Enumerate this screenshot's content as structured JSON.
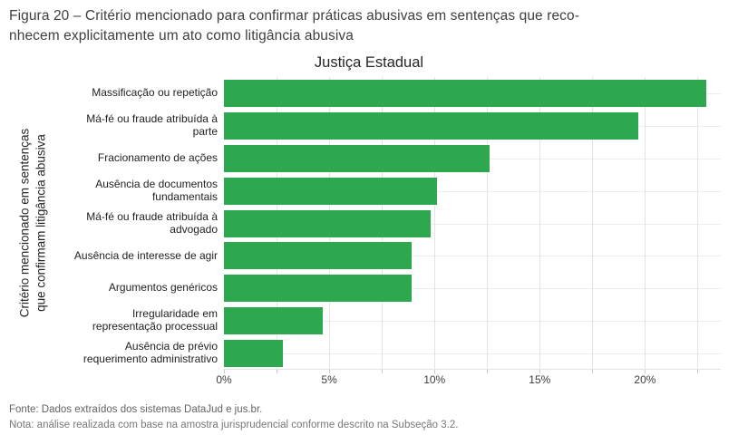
{
  "figure_caption": {
    "line1": "Figura 20 – Critério mencionado para confirmar práticas abusivas em sentenças que reco-",
    "line2": "nhecem explicitamente um ato como litigância abusiva"
  },
  "chart_data": {
    "type": "bar",
    "orientation": "horizontal",
    "title": "Justiça Estadual",
    "xlabel": "",
    "ylabel": "Critério mencionado em sentenças que confirmam litigância abusiva",
    "y_axis_title_lines": [
      "Critério mencionado em sentenças",
      "que confirmam litigância abusiva"
    ],
    "categories": [
      "Massificação ou repetição",
      "Má-fé ou fraude atribuída à parte",
      "Fracionamento de ações",
      "Ausência de documentos fundamentais",
      "Má-fé ou fraude atribuída à advogado",
      "Ausência de interesse de agir",
      "Argumentos genéricos",
      "Irregularidade em representação processual",
      "Ausência de prévio requerimento administrativo"
    ],
    "category_label_lines": [
      [
        "Massificação ou repetição"
      ],
      [
        "Má-fé ou fraude atribuída à",
        "parte"
      ],
      [
        "Fracionamento de ações"
      ],
      [
        "Ausência de documentos",
        "fundamentais"
      ],
      [
        "Má-fé ou fraude atribuída à",
        "advogado"
      ],
      [
        "Ausência de interesse de agir"
      ],
      [
        "Argumentos genéricos"
      ],
      [
        "Irregularidade em",
        "representação processual"
      ],
      [
        "Ausência de prévio",
        "requerimento administrativo"
      ]
    ],
    "values": [
      22.9,
      19.7,
      12.6,
      10.1,
      9.8,
      8.9,
      8.9,
      4.7,
      2.8
    ],
    "value_unit": "%",
    "xlim": [
      0,
      23.6
    ],
    "x_major_ticks": [
      {
        "value": 0,
        "label": "0%"
      },
      {
        "value": 5,
        "label": "5%"
      },
      {
        "value": 10,
        "label": "10%"
      },
      {
        "value": 15,
        "label": "15%"
      },
      {
        "value": 20,
        "label": "20%"
      }
    ],
    "x_minor_step": 2.5,
    "legend": "none",
    "grid": "vertical every 2.5%, horizontal at category centers",
    "colors": {
      "bar": "#2ea84e",
      "vgrid": "#e4e4e4",
      "hgrid": "#ececec",
      "tick": "#c9c9c9"
    }
  },
  "footer": {
    "source": "Fonte: Dados extraídos dos sistemas DataJud e jus.br.",
    "note": "Nota: análise realizada com base na amostra jurisprudencial conforme descrito na Subseção 3.2."
  }
}
